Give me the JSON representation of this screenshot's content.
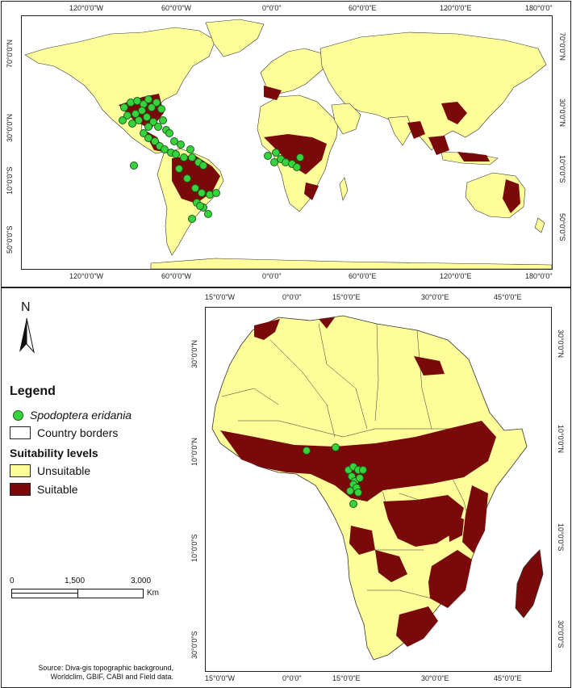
{
  "world_map": {
    "top_ticks": [
      "120°0'0\"W",
      "60°0'0\"W",
      "0°0'0\"",
      "60°0'0\"E",
      "120°0'0\"E",
      "180°0'0\""
    ],
    "bottom_ticks": [
      "120°0'0\"W",
      "60°0'0\"W",
      "0°0'0\"",
      "60°0'0\"E",
      "120°0'0\"E",
      "180°0'0\""
    ],
    "left_ticks": [
      "70°0'0\"N",
      "30°0'0\"N",
      "10°0'0\"S",
      "50°0'0\"S"
    ],
    "right_ticks": [
      "70°0'0\"N",
      "30°0'0\"N",
      "10°0'0\"S",
      "50°0'0\"S"
    ]
  },
  "africa_map": {
    "top_ticks": [
      "15°0'0\"W",
      "0°0'0\"",
      "15°0'0\"E",
      "30°0'0\"E",
      "45°0'0\"E"
    ],
    "bottom_ticks": [
      "15°0'0\"W",
      "0°0'0\"",
      "15°0'0\"E",
      "30°0'0\"E",
      "45°0'0\"E"
    ],
    "left_ticks": [
      "30°0'0\"N",
      "10°0'0\"N",
      "10°0'0\"S",
      "30°0'0\"S"
    ],
    "right_ticks": [
      "30°0'0\"N",
      "10°0'0\"N",
      "10°0'0\"S",
      "30°0'0\"S"
    ]
  },
  "north_arrow": {
    "label": "N"
  },
  "legend": {
    "title": "Legend",
    "species": "Spodoptera eridania",
    "borders": "Country borders",
    "levels_title": "Suitability levels",
    "unsuitable": "Unsuitable",
    "suitable": "Suitable"
  },
  "scale_bar": {
    "labels": [
      "0",
      "1,500",
      "3,000"
    ],
    "unit": "Km"
  },
  "source": {
    "line1": "Source: Diva-gis topographic background,",
    "line2": "Worldclim, GBIF, CABI and Field data."
  },
  "colors": {
    "unsuitable": "#fdfd9a",
    "suitable": "#7a0a0a",
    "occurrence": "#35d43b",
    "border": "#333333"
  }
}
